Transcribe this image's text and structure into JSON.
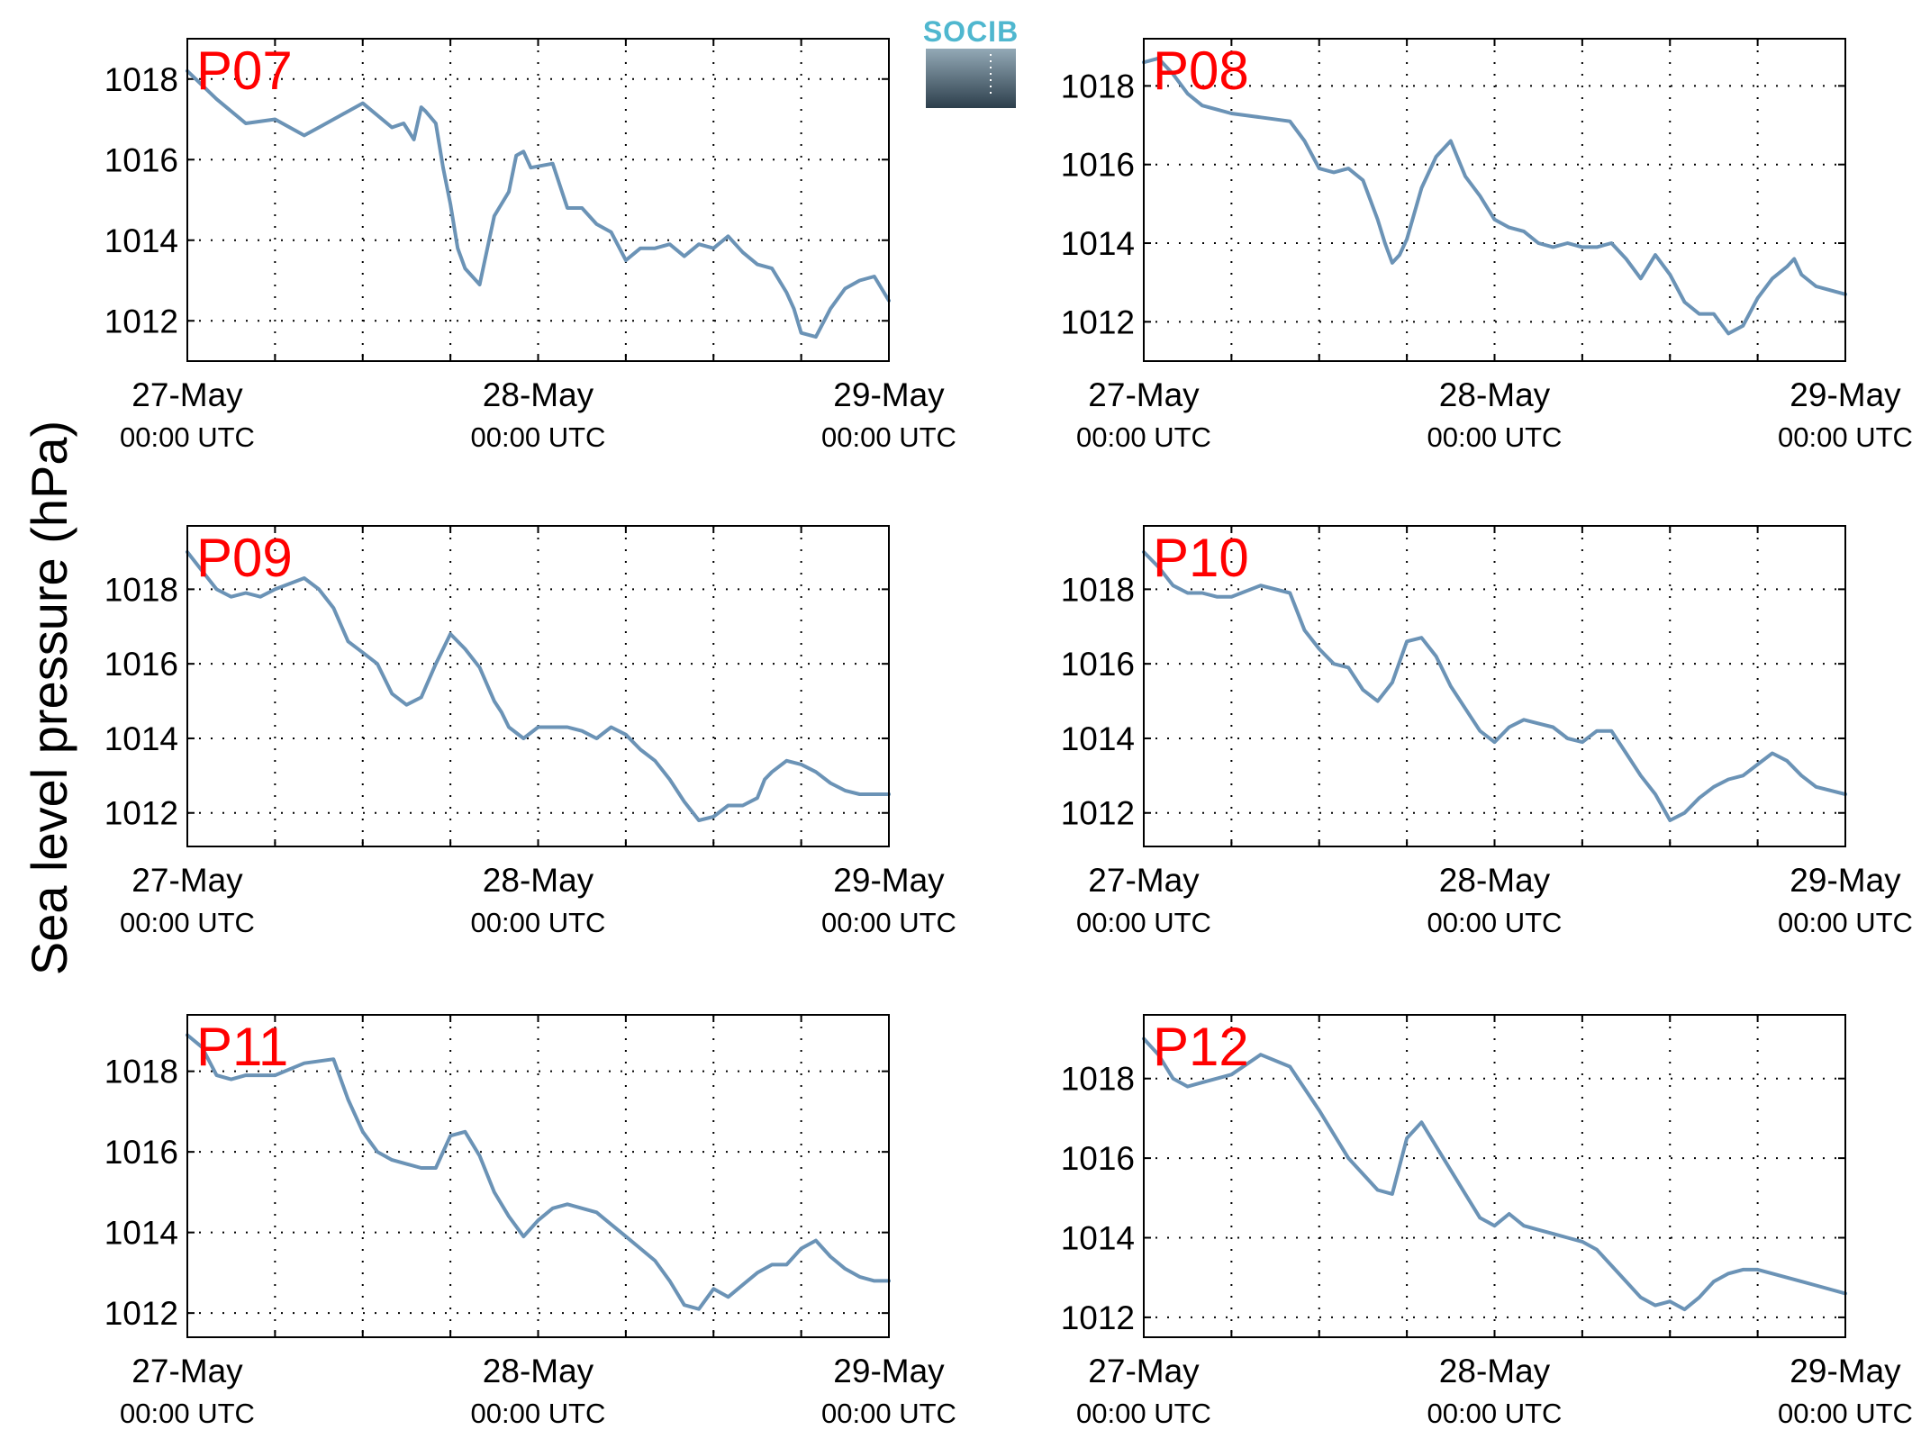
{
  "figure": {
    "ylabel": "Sea level pressure (hPa)",
    "logo_text": "SOCIB",
    "line_color": "#6b93b6",
    "label_color": "#ff0000"
  },
  "chart_data": [
    {
      "type": "line",
      "label": "P07",
      "x_ticks": [
        "27-May",
        "28-May",
        "29-May"
      ],
      "x_tick_sub": "00:00 UTC",
      "x_range_hours": [
        0,
        48
      ],
      "ylim": [
        1011,
        1019
      ],
      "y_ticks": [
        1012,
        1014,
        1016,
        1018
      ],
      "x": [
        0,
        2,
        3,
        4,
        6,
        8,
        9,
        12,
        14,
        14.8,
        15.5,
        16,
        16.3,
        17,
        17.5,
        18,
        18.5,
        19,
        20,
        21,
        22,
        22.5,
        23,
        23.5,
        25,
        26,
        27,
        28,
        29,
        30,
        31,
        32,
        33,
        34,
        35,
        36,
        37,
        38,
        39,
        40,
        41,
        41.5,
        42,
        43,
        44,
        45,
        46,
        47,
        48
      ],
      "values": [
        1018.2,
        1017.5,
        1017.2,
        1016.9,
        1017.0,
        1016.6,
        1016.8,
        1017.4,
        1016.8,
        1016.9,
        1016.5,
        1017.3,
        1017.2,
        1016.9,
        1015.8,
        1014.9,
        1013.8,
        1013.3,
        1012.9,
        1014.6,
        1015.2,
        1016.1,
        1016.2,
        1015.8,
        1015.9,
        1014.8,
        1014.8,
        1014.4,
        1014.2,
        1013.5,
        1013.8,
        1013.8,
        1013.9,
        1013.6,
        1013.9,
        1013.8,
        1014.1,
        1013.7,
        1013.4,
        1013.3,
        1012.7,
        1012.3,
        1011.7,
        1011.6,
        1012.3,
        1012.8,
        1013.0,
        1013.1,
        1012.5
      ]
    },
    {
      "type": "line",
      "label": "P08",
      "x_ticks": [
        "27-May",
        "28-May",
        "29-May"
      ],
      "x_tick_sub": "00:00 UTC",
      "x_range_hours": [
        0,
        48
      ],
      "ylim": [
        1011,
        1019.2
      ],
      "y_ticks": [
        1012,
        1014,
        1016,
        1018
      ],
      "x": [
        0,
        1,
        2,
        3,
        4,
        5,
        6,
        8,
        10,
        11,
        12,
        13,
        14,
        15,
        16,
        16.5,
        17,
        17.5,
        18,
        19,
        20,
        21,
        22,
        23,
        24,
        25,
        26,
        27,
        28,
        29,
        30,
        31,
        32,
        33,
        34,
        35,
        36,
        37,
        38,
        39,
        40,
        41,
        42,
        43,
        44,
        44.5,
        45,
        46,
        47,
        48
      ],
      "values": [
        1018.6,
        1018.7,
        1018.3,
        1017.8,
        1017.5,
        1017.4,
        1017.3,
        1017.2,
        1017.1,
        1016.6,
        1015.9,
        1015.8,
        1015.9,
        1015.6,
        1014.6,
        1014.0,
        1013.5,
        1013.7,
        1014.1,
        1015.4,
        1016.2,
        1016.6,
        1015.7,
        1015.2,
        1014.6,
        1014.4,
        1014.3,
        1014.0,
        1013.9,
        1014.0,
        1013.9,
        1013.9,
        1014.0,
        1013.6,
        1013.1,
        1013.7,
        1013.2,
        1012.5,
        1012.2,
        1012.2,
        1011.7,
        1011.9,
        1012.6,
        1013.1,
        1013.4,
        1013.6,
        1013.2,
        1012.9,
        1012.8,
        1012.7
      ]
    },
    {
      "type": "line",
      "label": "P09",
      "x_ticks": [
        "27-May",
        "28-May",
        "29-May"
      ],
      "x_tick_sub": "00:00 UTC",
      "x_range_hours": [
        0,
        48
      ],
      "ylim": [
        1011.1,
        1019.7
      ],
      "y_ticks": [
        1012,
        1014,
        1016,
        1018
      ],
      "x": [
        0,
        1,
        2,
        3,
        4,
        5,
        6,
        8,
        9,
        10,
        11,
        12,
        13,
        14,
        15,
        16,
        17,
        18,
        19,
        20,
        21,
        21.5,
        22,
        23,
        24,
        25,
        26,
        27,
        28,
        29,
        30,
        31,
        32,
        33,
        34,
        35,
        36,
        37,
        38,
        39,
        39.5,
        40,
        41,
        42,
        43,
        44,
        45,
        46,
        47,
        48
      ],
      "values": [
        1019.0,
        1018.5,
        1018.0,
        1017.8,
        1017.9,
        1017.8,
        1018.0,
        1018.3,
        1018.0,
        1017.5,
        1016.6,
        1016.3,
        1016.0,
        1015.2,
        1014.9,
        1015.1,
        1016.0,
        1016.8,
        1016.4,
        1015.9,
        1015.0,
        1014.7,
        1014.3,
        1014.0,
        1014.3,
        1014.3,
        1014.3,
        1014.2,
        1014.0,
        1014.3,
        1014.1,
        1013.7,
        1013.4,
        1012.9,
        1012.3,
        1011.8,
        1011.9,
        1012.2,
        1012.2,
        1012.4,
        1012.9,
        1013.1,
        1013.4,
        1013.3,
        1013.1,
        1012.8,
        1012.6,
        1012.5,
        1012.5,
        1012.5
      ]
    },
    {
      "type": "line",
      "label": "P10",
      "x_ticks": [
        "27-May",
        "28-May",
        "29-May"
      ],
      "x_tick_sub": "00:00 UTC",
      "x_range_hours": [
        0,
        48
      ],
      "ylim": [
        1011.1,
        1019.7
      ],
      "y_ticks": [
        1012,
        1014,
        1016,
        1018
      ],
      "x": [
        0,
        1,
        2,
        3,
        4,
        5,
        6,
        8,
        10,
        11,
        12,
        13,
        14,
        15,
        16,
        17,
        18,
        19,
        20,
        21,
        22,
        23,
        24,
        25,
        26,
        27,
        28,
        29,
        30,
        31,
        32,
        33,
        34,
        35,
        36,
        37,
        38,
        39,
        40,
        41,
        42,
        43,
        44,
        45,
        46,
        47,
        48
      ],
      "values": [
        1019.0,
        1018.6,
        1018.1,
        1017.9,
        1017.9,
        1017.8,
        1017.8,
        1018.1,
        1017.9,
        1016.9,
        1016.4,
        1016.0,
        1015.9,
        1015.3,
        1015.0,
        1015.5,
        1016.6,
        1016.7,
        1016.2,
        1015.4,
        1014.8,
        1014.2,
        1013.9,
        1014.3,
        1014.5,
        1014.4,
        1014.3,
        1014.0,
        1013.9,
        1014.2,
        1014.2,
        1013.6,
        1013.0,
        1012.5,
        1011.8,
        1012.0,
        1012.4,
        1012.7,
        1012.9,
        1013.0,
        1013.3,
        1013.6,
        1013.4,
        1013.0,
        1012.7,
        1012.6,
        1012.5
      ]
    },
    {
      "type": "line",
      "label": "P11",
      "x_ticks": [
        "27-May",
        "28-May",
        "29-May"
      ],
      "x_tick_sub": "00:00 UTC",
      "x_range_hours": [
        0,
        48
      ],
      "ylim": [
        1011.4,
        1019.4
      ],
      "y_ticks": [
        1012,
        1014,
        1016,
        1018
      ],
      "x": [
        0,
        1,
        2,
        3,
        4,
        5,
        6,
        8,
        10,
        11,
        12,
        13,
        14,
        15,
        16,
        17,
        18,
        19,
        20,
        21,
        22,
        23,
        24,
        25,
        26,
        27,
        28,
        29,
        30,
        31,
        32,
        33,
        34,
        35,
        36,
        37,
        38,
        39,
        40,
        41,
        42,
        43,
        44,
        45,
        46,
        47,
        48
      ],
      "values": [
        1018.9,
        1018.6,
        1017.9,
        1017.8,
        1017.9,
        1017.9,
        1017.9,
        1018.2,
        1018.3,
        1017.3,
        1016.5,
        1016.0,
        1015.8,
        1015.7,
        1015.6,
        1015.6,
        1016.4,
        1016.5,
        1015.9,
        1015.0,
        1014.4,
        1013.9,
        1014.3,
        1014.6,
        1014.7,
        1014.6,
        1014.5,
        1014.2,
        1013.9,
        1013.6,
        1013.3,
        1012.8,
        1012.2,
        1012.1,
        1012.6,
        1012.4,
        1012.7,
        1013.0,
        1013.2,
        1013.2,
        1013.6,
        1013.8,
        1013.4,
        1013.1,
        1012.9,
        1012.8,
        1012.8
      ]
    },
    {
      "type": "line",
      "label": "P12",
      "x_ticks": [
        "27-May",
        "28-May",
        "29-May"
      ],
      "x_tick_sub": "00:00 UTC",
      "x_range_hours": [
        0,
        48
      ],
      "ylim": [
        1011.5,
        1019.6
      ],
      "y_ticks": [
        1012,
        1014,
        1016,
        1018
      ],
      "x": [
        0,
        1,
        2,
        3,
        4,
        6,
        8,
        10,
        12,
        14,
        16,
        17,
        18,
        19,
        20,
        21,
        22,
        23,
        24,
        25,
        26,
        27,
        28,
        29,
        30,
        31,
        32,
        33,
        34,
        35,
        36,
        37,
        38,
        39,
        40,
        41,
        42,
        43,
        44,
        45,
        46,
        47,
        48
      ],
      "values": [
        1019.0,
        1018.6,
        1018.0,
        1017.8,
        1017.9,
        1018.1,
        1018.6,
        1018.3,
        1017.2,
        1016.0,
        1015.2,
        1015.1,
        1016.5,
        1016.9,
        1016.3,
        1015.7,
        1015.1,
        1014.5,
        1014.3,
        1014.6,
        1014.3,
        1014.2,
        1014.1,
        1014.0,
        1013.9,
        1013.7,
        1013.3,
        1012.9,
        1012.5,
        1012.3,
        1012.4,
        1012.2,
        1012.5,
        1012.9,
        1013.1,
        1013.2,
        1013.2,
        1013.1,
        1013.0,
        1012.9,
        1012.8,
        1012.7,
        1012.6
      ]
    }
  ]
}
